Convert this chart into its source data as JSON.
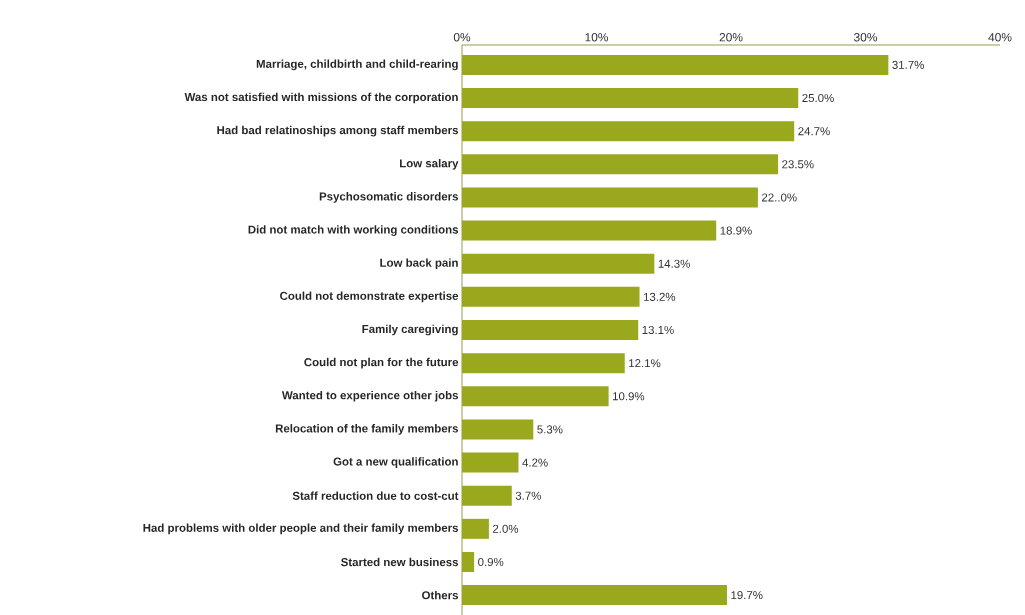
{
  "chart_data": {
    "type": "bar",
    "orientation": "horizontal",
    "color": "#9aa81e",
    "categories": [
      "Marriage, childbirth and child-rearing",
      "Was not satisfied with missions of the corporation",
      "Had bad relatinoships among staff members",
      "Low salary",
      "Psychosomatic disorders",
      "Did not match with working conditions",
      "Low back pain",
      "Could not demonstrate expertise",
      "Family caregiving",
      "Could not plan for the future",
      "Wanted to experience other jobs",
      "Relocation of the family members",
      "Got a new qualification",
      "Staff reduction due to cost-cut",
      "Had problems with older people and their family members",
      "Started new business",
      "Others"
    ],
    "values": [
      31.7,
      25.0,
      24.7,
      23.5,
      22.0,
      18.9,
      14.3,
      13.2,
      13.1,
      12.1,
      10.9,
      5.3,
      4.2,
      3.7,
      2.0,
      0.9,
      19.7
    ],
    "value_labels": [
      "31.7%",
      "25.0%",
      "24.7%",
      "23.5%",
      "22..0%",
      "18.9%",
      "14.3%",
      "13.2%",
      "13.1%",
      "12.1%",
      "10.9%",
      "5.3%",
      "4.2%",
      "3.7%",
      "2.0%",
      "0.9%",
      "19.7%"
    ],
    "xlim": [
      0,
      40
    ],
    "xticks": [
      {
        "value": 0,
        "label": "0%"
      },
      {
        "value": 10,
        "label": "10%"
      },
      {
        "value": 20,
        "label": "20%"
      },
      {
        "value": 30,
        "label": "30%"
      },
      {
        "value": 40,
        "label": "40%"
      }
    ]
  }
}
